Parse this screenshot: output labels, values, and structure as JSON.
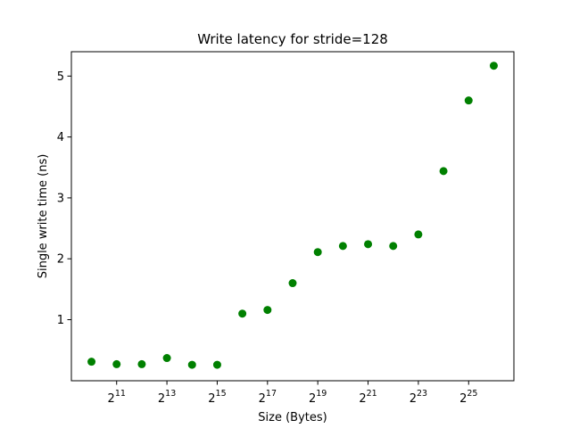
{
  "chart_data": {
    "type": "scatter",
    "title": "Write latency for stride=128",
    "xlabel": "Size (Bytes)",
    "ylabel": "Single write time (ns)",
    "x_scale": "log2",
    "x_base_label": "2",
    "x_tick_exponents": [
      11,
      13,
      15,
      17,
      19,
      21,
      23,
      25
    ],
    "x_exponent_range": [
      9.2,
      26.8
    ],
    "y_ticks": [
      1,
      2,
      3,
      4,
      5
    ],
    "ylim": [
      -0.0025,
      5.4
    ],
    "marker_color": "#008000",
    "grid": false,
    "points": [
      {
        "x_exp": 10,
        "y": 0.31
      },
      {
        "x_exp": 11,
        "y": 0.27
      },
      {
        "x_exp": 12,
        "y": 0.27
      },
      {
        "x_exp": 13,
        "y": 0.37
      },
      {
        "x_exp": 14,
        "y": 0.26
      },
      {
        "x_exp": 15,
        "y": 0.26
      },
      {
        "x_exp": 16,
        "y": 1.1
      },
      {
        "x_exp": 17,
        "y": 1.16
      },
      {
        "x_exp": 18,
        "y": 1.6
      },
      {
        "x_exp": 19,
        "y": 2.11
      },
      {
        "x_exp": 20,
        "y": 2.21
      },
      {
        "x_exp": 21,
        "y": 2.24
      },
      {
        "x_exp": 22,
        "y": 2.21
      },
      {
        "x_exp": 23,
        "y": 2.4
      },
      {
        "x_exp": 24,
        "y": 3.44
      },
      {
        "x_exp": 25,
        "y": 4.6
      },
      {
        "x_exp": 26,
        "y": 5.17
      }
    ]
  }
}
